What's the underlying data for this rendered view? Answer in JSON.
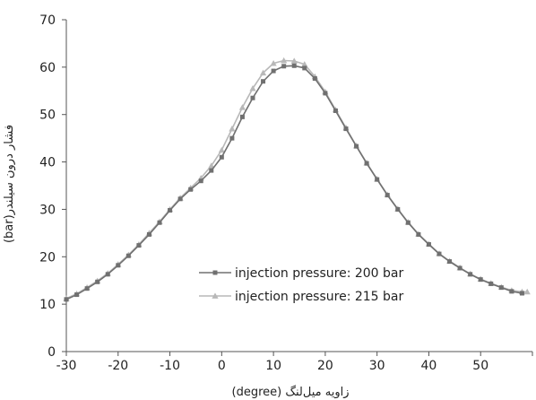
{
  "chart_data": {
    "type": "line",
    "title": "",
    "xlabel": "(degree) زاویه میل‌لنگ",
    "ylabel": "(bar)فشار درون سیلندر",
    "xlim": [
      -30,
      60
    ],
    "ylim": [
      0,
      70
    ],
    "x_ticks": [
      "-30",
      "-20",
      "-10",
      "0",
      "10",
      "20",
      "30",
      "40",
      "50"
    ],
    "x_tick_values": [
      -30,
      -20,
      -10,
      0,
      10,
      20,
      30,
      40,
      50
    ],
    "y_ticks": [
      "0",
      "10",
      "20",
      "30",
      "40",
      "50",
      "60",
      "70"
    ],
    "y_tick_values": [
      0,
      10,
      20,
      30,
      40,
      50,
      60,
      70
    ],
    "grid": false,
    "legend_position": "lower-center",
    "series": [
      {
        "name": "injection pressure: 200 bar",
        "color": "#707070",
        "marker": "square",
        "x": [
          -30,
          -28,
          -26,
          -24,
          -22,
          -20,
          -18,
          -16,
          -14,
          -12,
          -10,
          -8,
          -6,
          -4,
          -2,
          0,
          2,
          4,
          6,
          8,
          10,
          12,
          14,
          16,
          18,
          20,
          22,
          24,
          26,
          28,
          30,
          32,
          34,
          36,
          38,
          40,
          42,
          44,
          46,
          48,
          50,
          52,
          54,
          56,
          58
        ],
        "y": [
          11.0,
          12.0,
          13.3,
          14.7,
          16.3,
          18.2,
          20.2,
          22.4,
          24.7,
          27.2,
          29.8,
          32.2,
          34.2,
          36.0,
          38.2,
          41.0,
          45.0,
          49.5,
          53.5,
          57.0,
          59.2,
          60.2,
          60.3,
          59.8,
          57.6,
          54.5,
          50.8,
          47.0,
          43.3,
          39.7,
          36.3,
          33.0,
          30.0,
          27.2,
          24.7,
          22.6,
          20.6,
          19.0,
          17.6,
          16.3,
          15.2,
          14.3,
          13.5,
          12.7,
          12.3
        ]
      },
      {
        "name": "injection pressure: 215 bar",
        "color": "#b8b8b8",
        "marker": "triangle",
        "x": [
          -30,
          -28,
          -26,
          -24,
          -22,
          -20,
          -18,
          -16,
          -14,
          -12,
          -10,
          -8,
          -6,
          -4,
          -2,
          0,
          2,
          4,
          6,
          8,
          10,
          12,
          14,
          16,
          18,
          20,
          22,
          24,
          26,
          28,
          30,
          32,
          34,
          36,
          38,
          40,
          42,
          44,
          46,
          48,
          50,
          52,
          54,
          56,
          58,
          59
        ],
        "y": [
          11.2,
          12.2,
          13.5,
          14.9,
          16.5,
          18.4,
          20.4,
          22.6,
          25.0,
          27.4,
          30.0,
          32.4,
          34.5,
          36.6,
          39.2,
          42.5,
          47.0,
          51.5,
          55.5,
          58.8,
          60.8,
          61.4,
          61.3,
          60.6,
          58.0,
          54.8,
          51.0,
          47.2,
          43.4,
          39.8,
          36.4,
          33.1,
          30.1,
          27.3,
          24.8,
          22.7,
          20.7,
          19.1,
          17.7,
          16.4,
          15.3,
          14.4,
          13.6,
          12.9,
          12.6,
          12.6
        ]
      }
    ]
  }
}
